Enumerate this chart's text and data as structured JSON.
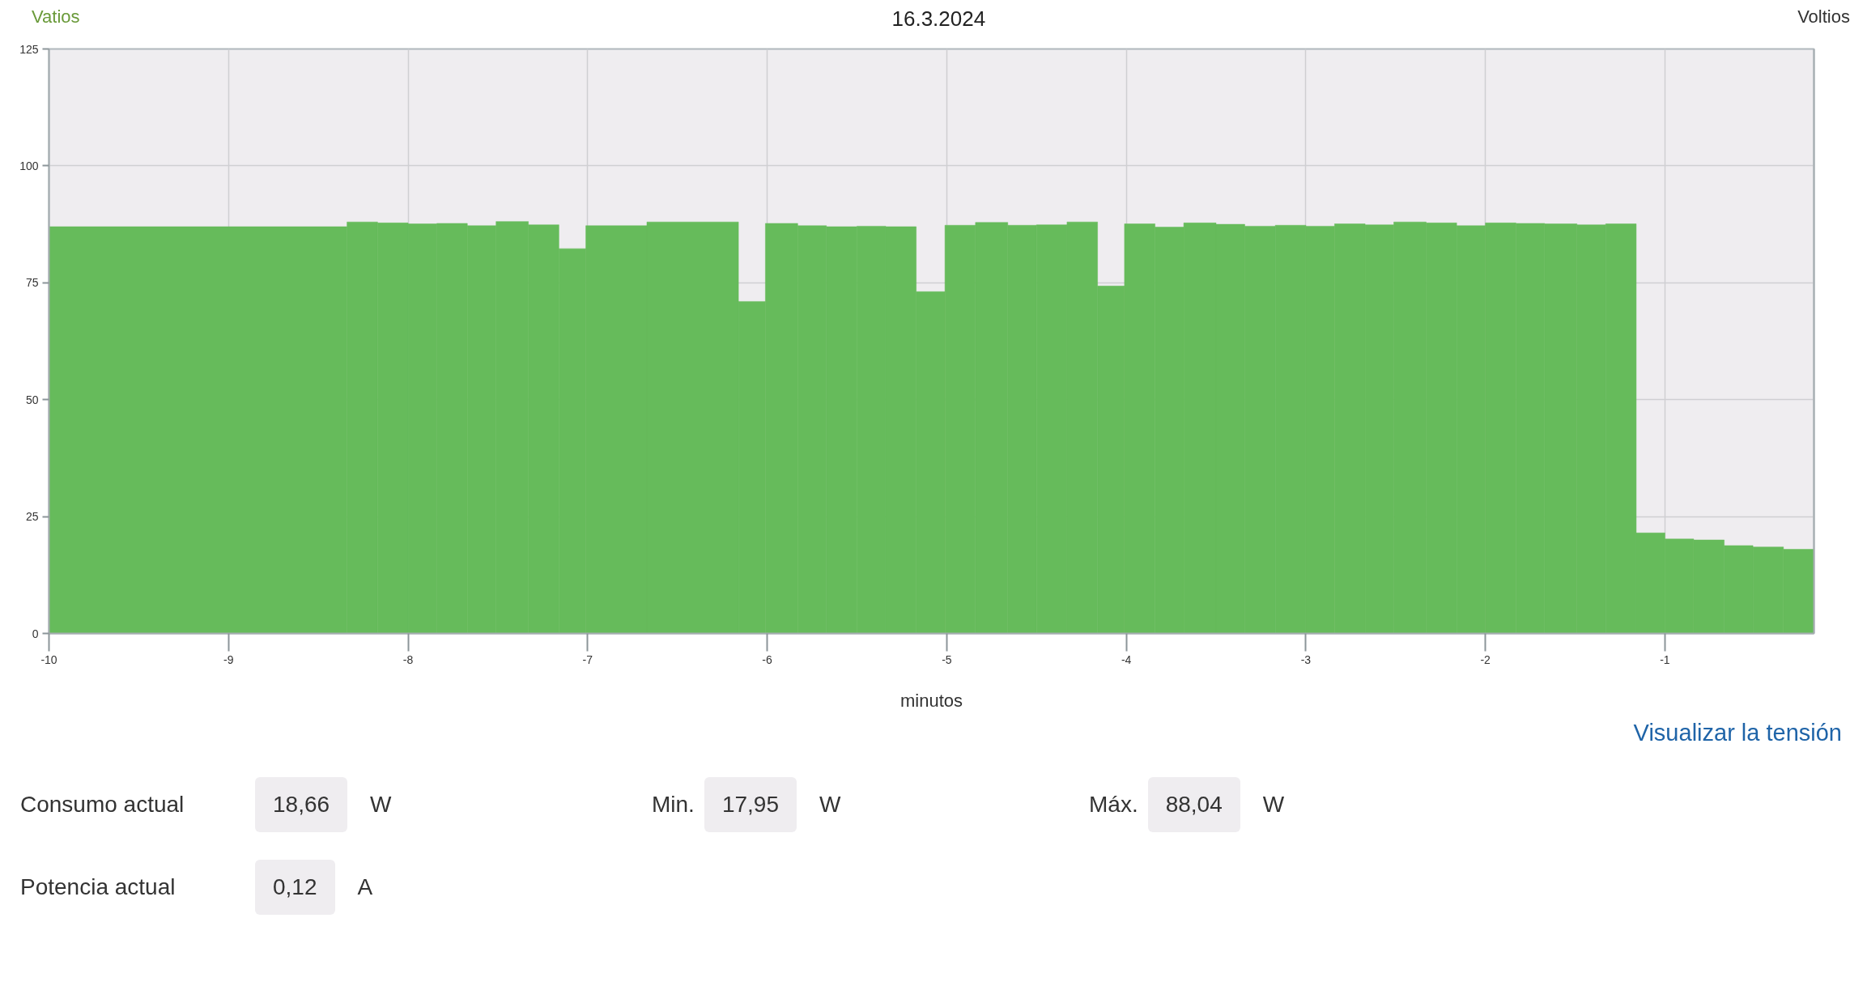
{
  "chart_data": {
    "type": "histogram",
    "title": "16.3.2024",
    "ylabel": "Vatios",
    "y2label": "Voltios",
    "xlabel": "minutos",
    "bins": [
      -10,
      -8.34,
      -8.17,
      -8.0,
      -7.84,
      -7.67,
      -7.51,
      -7.33,
      -7.16,
      -7.01,
      -6.67,
      -6.16,
      -6.01,
      -5.83,
      -5.67,
      -5.5,
      -5.34,
      -5.17,
      -5.01,
      -4.84,
      -4.66,
      -4.5,
      -4.33,
      -4.16,
      -4.01,
      -3.84,
      -3.68,
      -3.5,
      -3.34,
      -3.17,
      -3.0,
      -2.84,
      -2.67,
      -2.51,
      -2.33,
      -2.16,
      -2.0,
      -1.83,
      -1.67,
      -1.49,
      -1.33,
      -1.16,
      -1.0,
      -0.84,
      -0.67,
      -0.51,
      -0.34,
      -0.17
    ],
    "series": [
      {
        "color": "#66bb5b",
        "values": [
          87,
          88,
          87.8,
          87.6,
          87.7,
          87.2,
          88.1,
          87.4,
          82.3,
          87.2,
          88,
          71,
          87.7,
          87.2,
          87,
          87.1,
          87,
          73.1,
          87.3,
          87.9,
          87.3,
          87.4,
          88,
          74.3,
          87.6,
          86.9,
          87.8,
          87.5,
          87.1,
          87.3,
          87.1,
          87.6,
          87.4,
          88,
          87.8,
          87.2,
          87.8,
          87.7,
          87.6,
          87.4,
          87.6,
          21.5,
          20.2,
          20,
          18.8,
          18.5,
          18
        ]
      }
    ],
    "xlim": [
      -10,
      -0.17
    ],
    "xticks": [
      -10,
      -9,
      -8,
      -7,
      -6,
      -5,
      -4,
      -3,
      -2,
      -1
    ],
    "ylim": [
      0,
      125
    ],
    "yticks": [
      0,
      25,
      50,
      75,
      100,
      125
    ],
    "grid": true,
    "annotations": [
      "Visualizar la tensión",
      "Consumo actual",
      "18,66",
      "W",
      "Min.",
      "17,95",
      "W",
      "Máx.",
      "88,04",
      "W",
      "Potencia actual",
      "0,12",
      "A"
    ]
  }
}
